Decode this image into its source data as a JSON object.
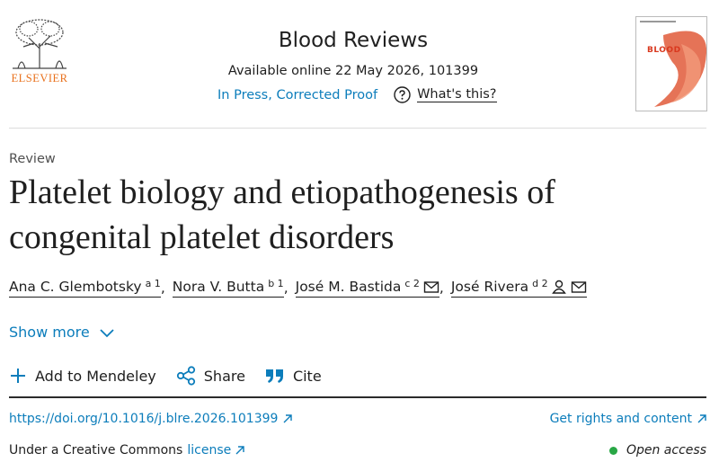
{
  "header": {
    "publisher": "ELSEVIER",
    "journal": "Blood Reviews",
    "available": "Available online 22 May 2026, 101399",
    "status": "In Press, Corrected Proof",
    "whats_this": "What's this?",
    "cover_text": "BLOOD"
  },
  "article": {
    "type": "Review",
    "title": "Platelet biology and etiopathogenesis of congenital platelet disorders",
    "authors": [
      {
        "name": "Ana C. Glembotsky",
        "sup": "a 1"
      },
      {
        "name": "Nora V. Butta",
        "sup": "b 1"
      },
      {
        "name": "José M. Bastida",
        "sup": "c 2"
      },
      {
        "name": "José Rivera",
        "sup": "d 2"
      }
    ],
    "author_separator": ",",
    "show_more": "Show more"
  },
  "actions": [
    "Add to Mendeley",
    "Share",
    "Cite"
  ],
  "links": {
    "doi": "https://doi.org/10.1016/j.blre.2026.101399",
    "rights": "Get rights and content",
    "license_prefix": "Under a Creative Commons",
    "license": "license",
    "open_access": "Open access"
  }
}
